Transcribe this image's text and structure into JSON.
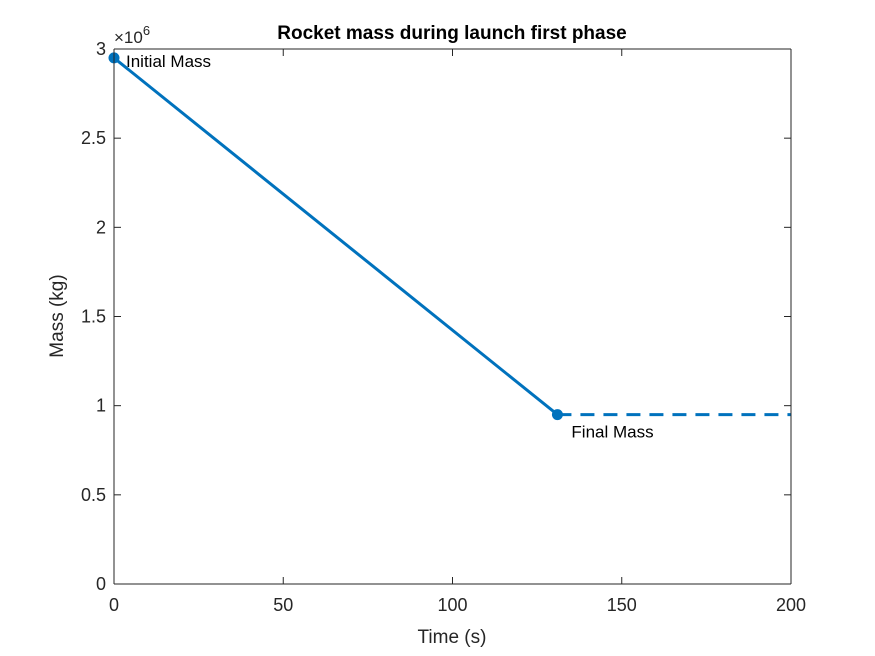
{
  "chart_data": {
    "type": "line",
    "title": "Rocket mass during launch first phase",
    "xlabel": "Time (s)",
    "ylabel": "Mass (kg)",
    "xlim": [
      0,
      200
    ],
    "ylim": [
      0,
      3000000
    ],
    "x_ticks": [
      0,
      50,
      100,
      150,
      200
    ],
    "x_tick_labels": [
      "0",
      "50",
      "100",
      "150",
      "200"
    ],
    "y_ticks": [
      0,
      500000,
      1000000,
      1500000,
      2000000,
      2500000,
      3000000
    ],
    "y_tick_labels": [
      "0",
      "0.5",
      "1",
      "1.5",
      "2",
      "2.5",
      "3"
    ],
    "y_exponent_base": "×10",
    "y_exponent_power": "6",
    "grid": false,
    "line_color": "#0072BD",
    "series": [
      {
        "style": "solid",
        "x": [
          0,
          131
        ],
        "y": [
          2950000,
          950000
        ]
      },
      {
        "style": "dashed",
        "x": [
          131,
          200
        ],
        "y": [
          950000,
          950000
        ]
      }
    ],
    "markers": [
      {
        "x": 0,
        "y": 2950000
      },
      {
        "x": 131,
        "y": 950000
      }
    ],
    "annotations": [
      {
        "text": "Initial Mass",
        "x": 0,
        "y": 2950000,
        "placement": "right-below"
      },
      {
        "text": "Final Mass",
        "x": 131,
        "y": 950000,
        "placement": "right-below"
      }
    ]
  }
}
